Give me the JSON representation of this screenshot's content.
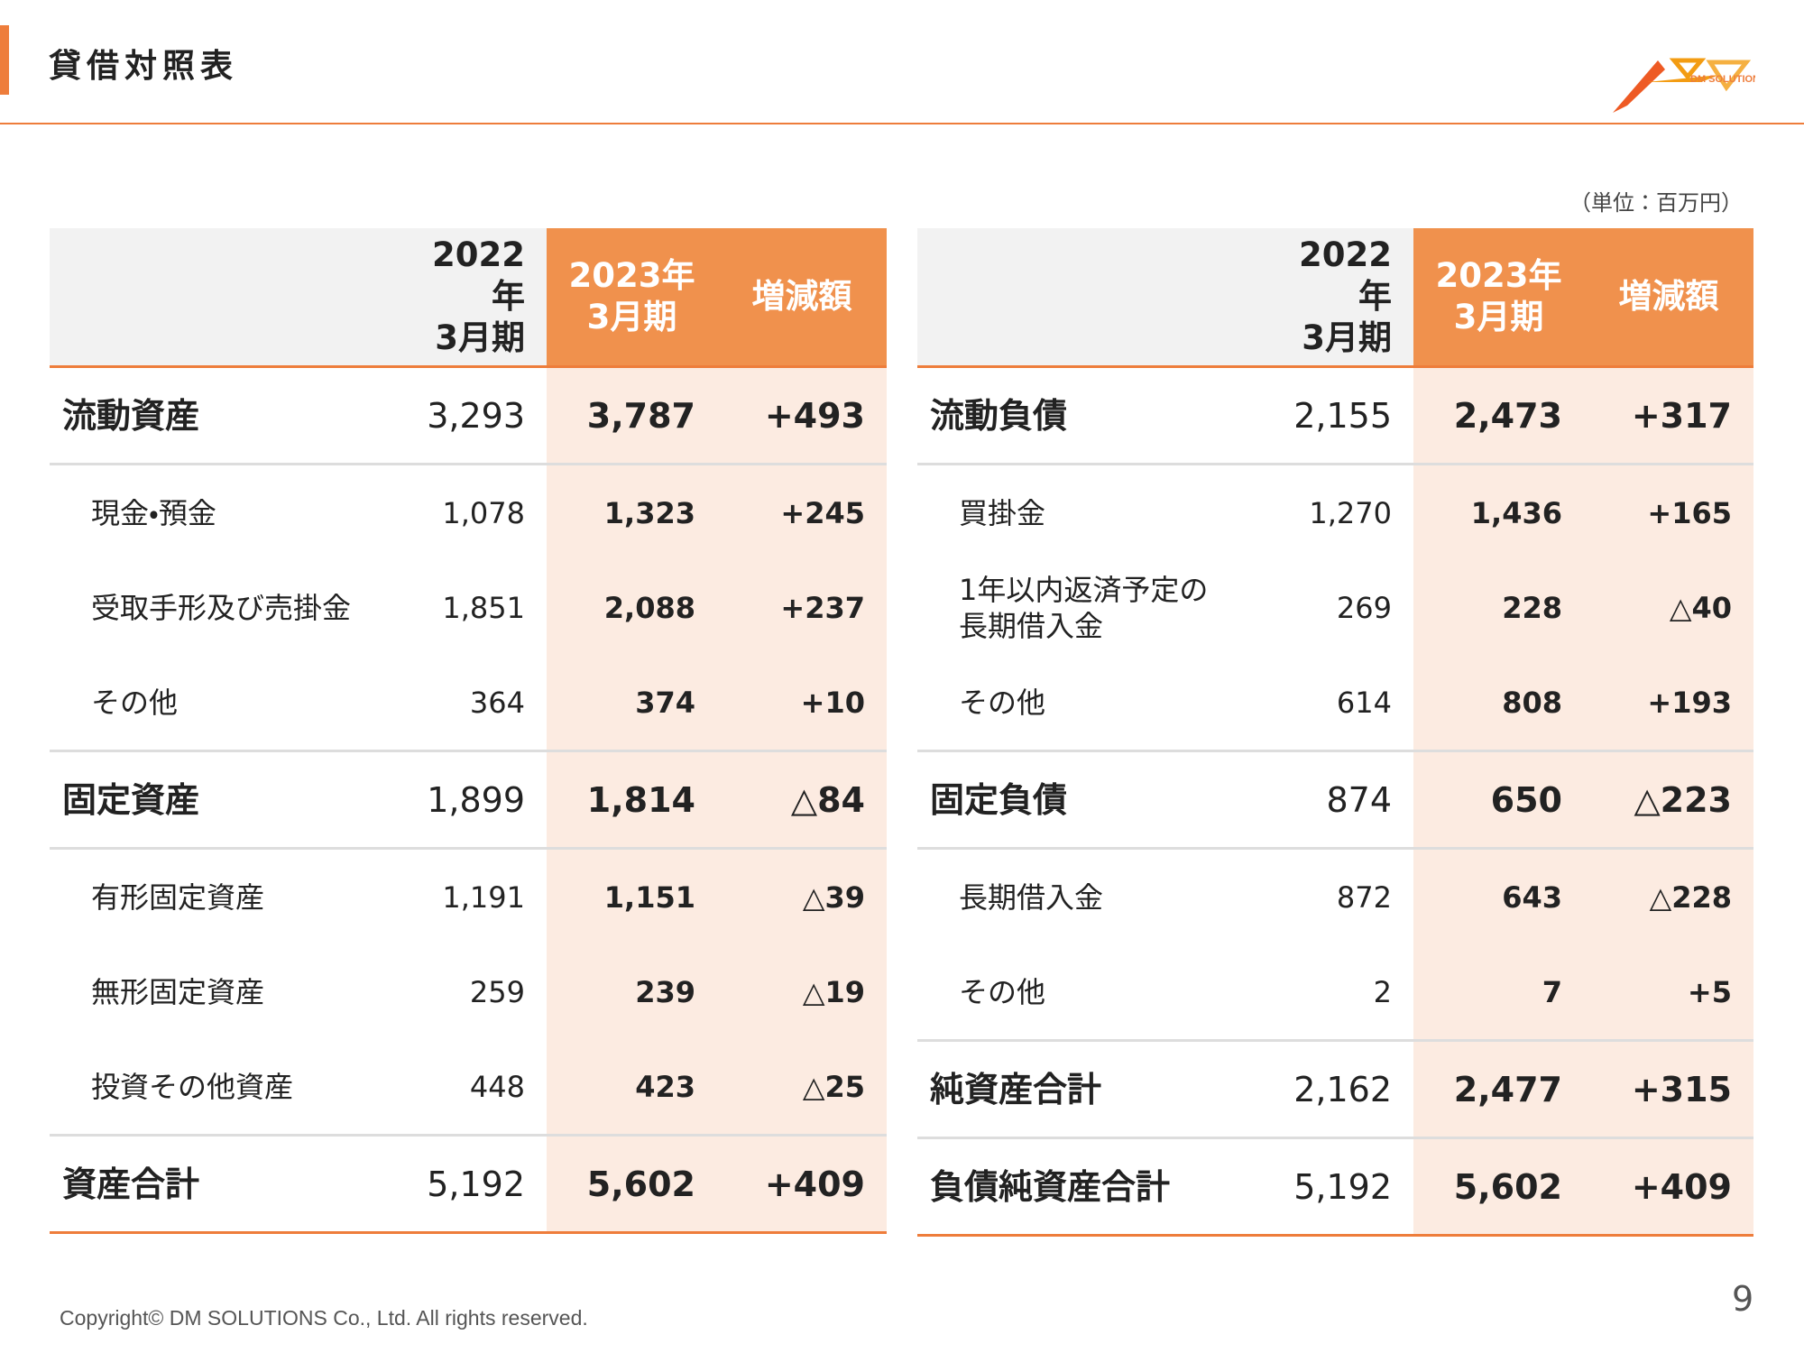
{
  "header": {
    "title": "貸借対照表",
    "logo": "DM SOLUTIONS"
  },
  "unit": "（単位：百万円）",
  "tables": [
    {
      "columns": [
        "2022年\n3月期",
        "2023年\n3月期",
        "増減額"
      ],
      "rows": [
        [
          "流動資産",
          "3,293",
          "3,787",
          "+493"
        ],
        [
          "現金・預金",
          "1,078",
          "1,323",
          "+245"
        ],
        [
          "受取手形及び売掛金",
          "1,851",
          "2,088",
          "+237"
        ],
        [
          "その他",
          "364",
          "374",
          "+10"
        ],
        [
          "固定資産",
          "1,899",
          "1,814",
          "△84"
        ],
        [
          "有形固定資産",
          "1,191",
          "1,151",
          "△39"
        ],
        [
          "無形固定資産",
          "259",
          "239",
          "△19"
        ],
        [
          "投資その他資産",
          "448",
          "423",
          "△25"
        ],
        [
          "資産合計",
          "5,192",
          "5,602",
          "+409"
        ]
      ]
    },
    {
      "columns": [
        "2022年\n3月期",
        "2023年\n3月期",
        "増減額"
      ],
      "rows": [
        [
          "流動負債",
          "2,155",
          "2,473",
          "+317"
        ],
        [
          "買掛金",
          "1,270",
          "1,436",
          "+165"
        ],
        [
          "1年以内返済予定の\n長期借入金",
          "269",
          "228",
          "△40"
        ],
        [
          "その他",
          "614",
          "808",
          "+193"
        ],
        [
          "固定負債",
          "874",
          "650",
          "△223"
        ],
        [
          "長期借入金",
          "872",
          "643",
          "△228"
        ],
        [
          "その他",
          "2",
          "7",
          "+5"
        ],
        [
          "純資産合計",
          "2,162",
          "2,477",
          "+315"
        ],
        [
          "負債純資産合計",
          "5,192",
          "5,602",
          "+409"
        ]
      ]
    }
  ],
  "footer": {
    "copyright": "Copyright© DM SOLUTIONS Co., Ltd. All rights reserved.",
    "page": "9"
  }
}
